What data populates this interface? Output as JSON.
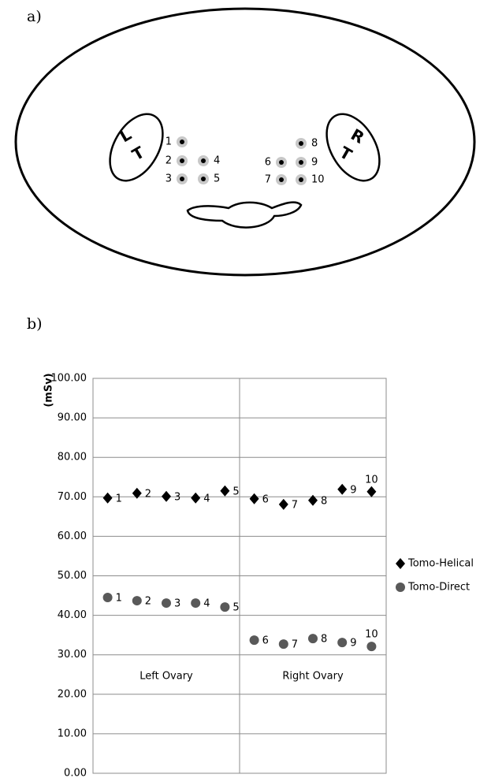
{
  "panel_labels": [
    "a)",
    "b)"
  ],
  "diagram": {
    "left_ovary": [
      "L",
      "T"
    ],
    "right_ovary": [
      "R",
      "T"
    ],
    "points": [
      "1",
      "2",
      "3",
      "4",
      "5",
      "6",
      "7",
      "8",
      "9",
      "10"
    ]
  },
  "chart_data": {
    "type": "scatter",
    "y_label": "(mSv)",
    "x": [
      1,
      2,
      3,
      4,
      5,
      6,
      7,
      8,
      9,
      10
    ],
    "point_labels": [
      "1",
      "2",
      "3",
      "4",
      "5",
      "6",
      "7",
      "8",
      "9",
      "10"
    ],
    "xlim": [
      0.5,
      10.5
    ],
    "groups": [
      {
        "label": "Left Ovary",
        "range": [
          0.5,
          5.5
        ]
      },
      {
        "label": "Right Ovary",
        "range": [
          5.5,
          10.5
        ]
      }
    ],
    "series": [
      {
        "name": "Tomo-Helical",
        "color": "#000000",
        "marker": "diamond",
        "values": [
          69.7,
          70.9,
          70.1,
          69.7,
          71.5,
          69.5,
          68.1,
          69.1,
          71.9,
          71.3
        ]
      },
      {
        "name": "Tomo-Direct",
        "color": "#595959",
        "marker": "circle",
        "values": [
          44.5,
          43.7,
          43.1,
          43.1,
          42.1,
          33.7,
          32.7,
          34.1,
          33.1,
          32.1
        ]
      }
    ],
    "ylim": [
      0,
      100
    ],
    "yticks": [
      {
        "value": 0,
        "label": "0.00"
      },
      {
        "value": 10,
        "label": "10.00"
      },
      {
        "value": 20,
        "label": "20.00"
      },
      {
        "value": 30,
        "label": "30.00"
      },
      {
        "value": 40,
        "label": "40.00"
      },
      {
        "value": 50,
        "label": "50.00"
      },
      {
        "value": 60,
        "label": "60.00"
      },
      {
        "value": 70,
        "label": "70.00"
      },
      {
        "value": 80,
        "label": "80.00"
      },
      {
        "value": 90,
        "label": "90.00"
      },
      {
        "value": 100,
        "label": "100.00"
      }
    ],
    "grid": true,
    "legend": "right"
  }
}
